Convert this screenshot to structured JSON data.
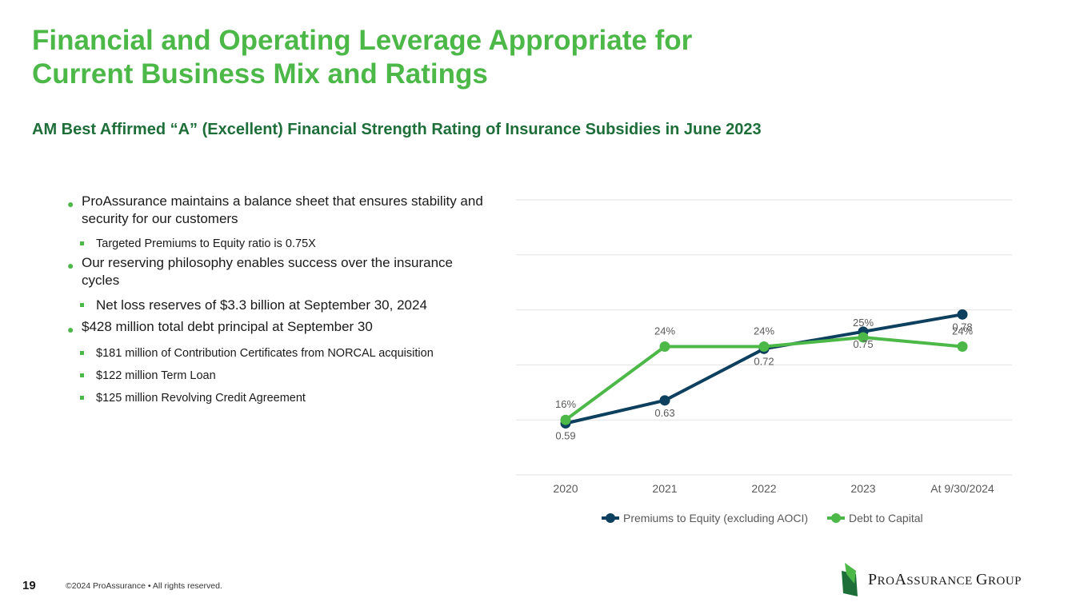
{
  "slide": {
    "title_line1": "Financial and Operating Leverage Appropriate for",
    "title_line2": "Current Business Mix and Ratings",
    "subtitle": "AM Best Affirmed “A” (Excellent) Financial Strength Rating of Insurance Subsidies in June 2023",
    "page_number": "19",
    "copyright": "©2024 ProAssurance  •  All rights reserved.",
    "logo": {
      "part1_cap": "P",
      "part1_rest": "RO",
      "part2_cap": "A",
      "part2_rest": "SSURANCE ",
      "part3_cap": "G",
      "part3_rest": "ROUP"
    }
  },
  "bullets": [
    {
      "text": "ProAssurance maintains a balance sheet that ensures stability and security for our customers",
      "subs": [
        {
          "text": "Targeted Premiums to Equity ratio is 0.75X",
          "size": "small"
        }
      ]
    },
    {
      "text": "Our reserving philosophy enables success over the insurance cycles",
      "subs": [
        {
          "text": "Net loss reserves of $3.3 billion at September 30, 2024",
          "size": "big"
        }
      ]
    },
    {
      "text": "$428 million total debt principal at September 30",
      "subs": [
        {
          "text": "$181 million of Contribution Certificates from NORCAL acquisition",
          "size": "small"
        },
        {
          "text": "$122 million Term Loan",
          "size": "small"
        },
        {
          "text": "$125 million Revolving Credit Agreement",
          "size": "small"
        }
      ]
    }
  ],
  "chart_data": {
    "type": "line",
    "categories": [
      "2020",
      "2021",
      "2022",
      "2023",
      "At 9/30/2024"
    ],
    "series": [
      {
        "name": "Premiums to Equity (excluding AOCI)",
        "color": "#0D3F5E",
        "values": [
          0.59,
          0.63,
          0.72,
          0.75,
          0.78
        ],
        "labels": [
          "0.59",
          "0.63",
          "0.72",
          "0.75",
          "0.78"
        ]
      },
      {
        "name": "Debt to Capital",
        "color": "#4CB848",
        "values": [
          0.16,
          0.24,
          0.24,
          0.25,
          0.24
        ],
        "labels": [
          "16%",
          "24%",
          "24%",
          "25%",
          "24%"
        ]
      }
    ],
    "legend_position": "bottom",
    "grid": true
  },
  "colors": {
    "brand_green": "#4CB848",
    "dark_green": "#1E6E3A",
    "navy": "#0D3F5E"
  }
}
